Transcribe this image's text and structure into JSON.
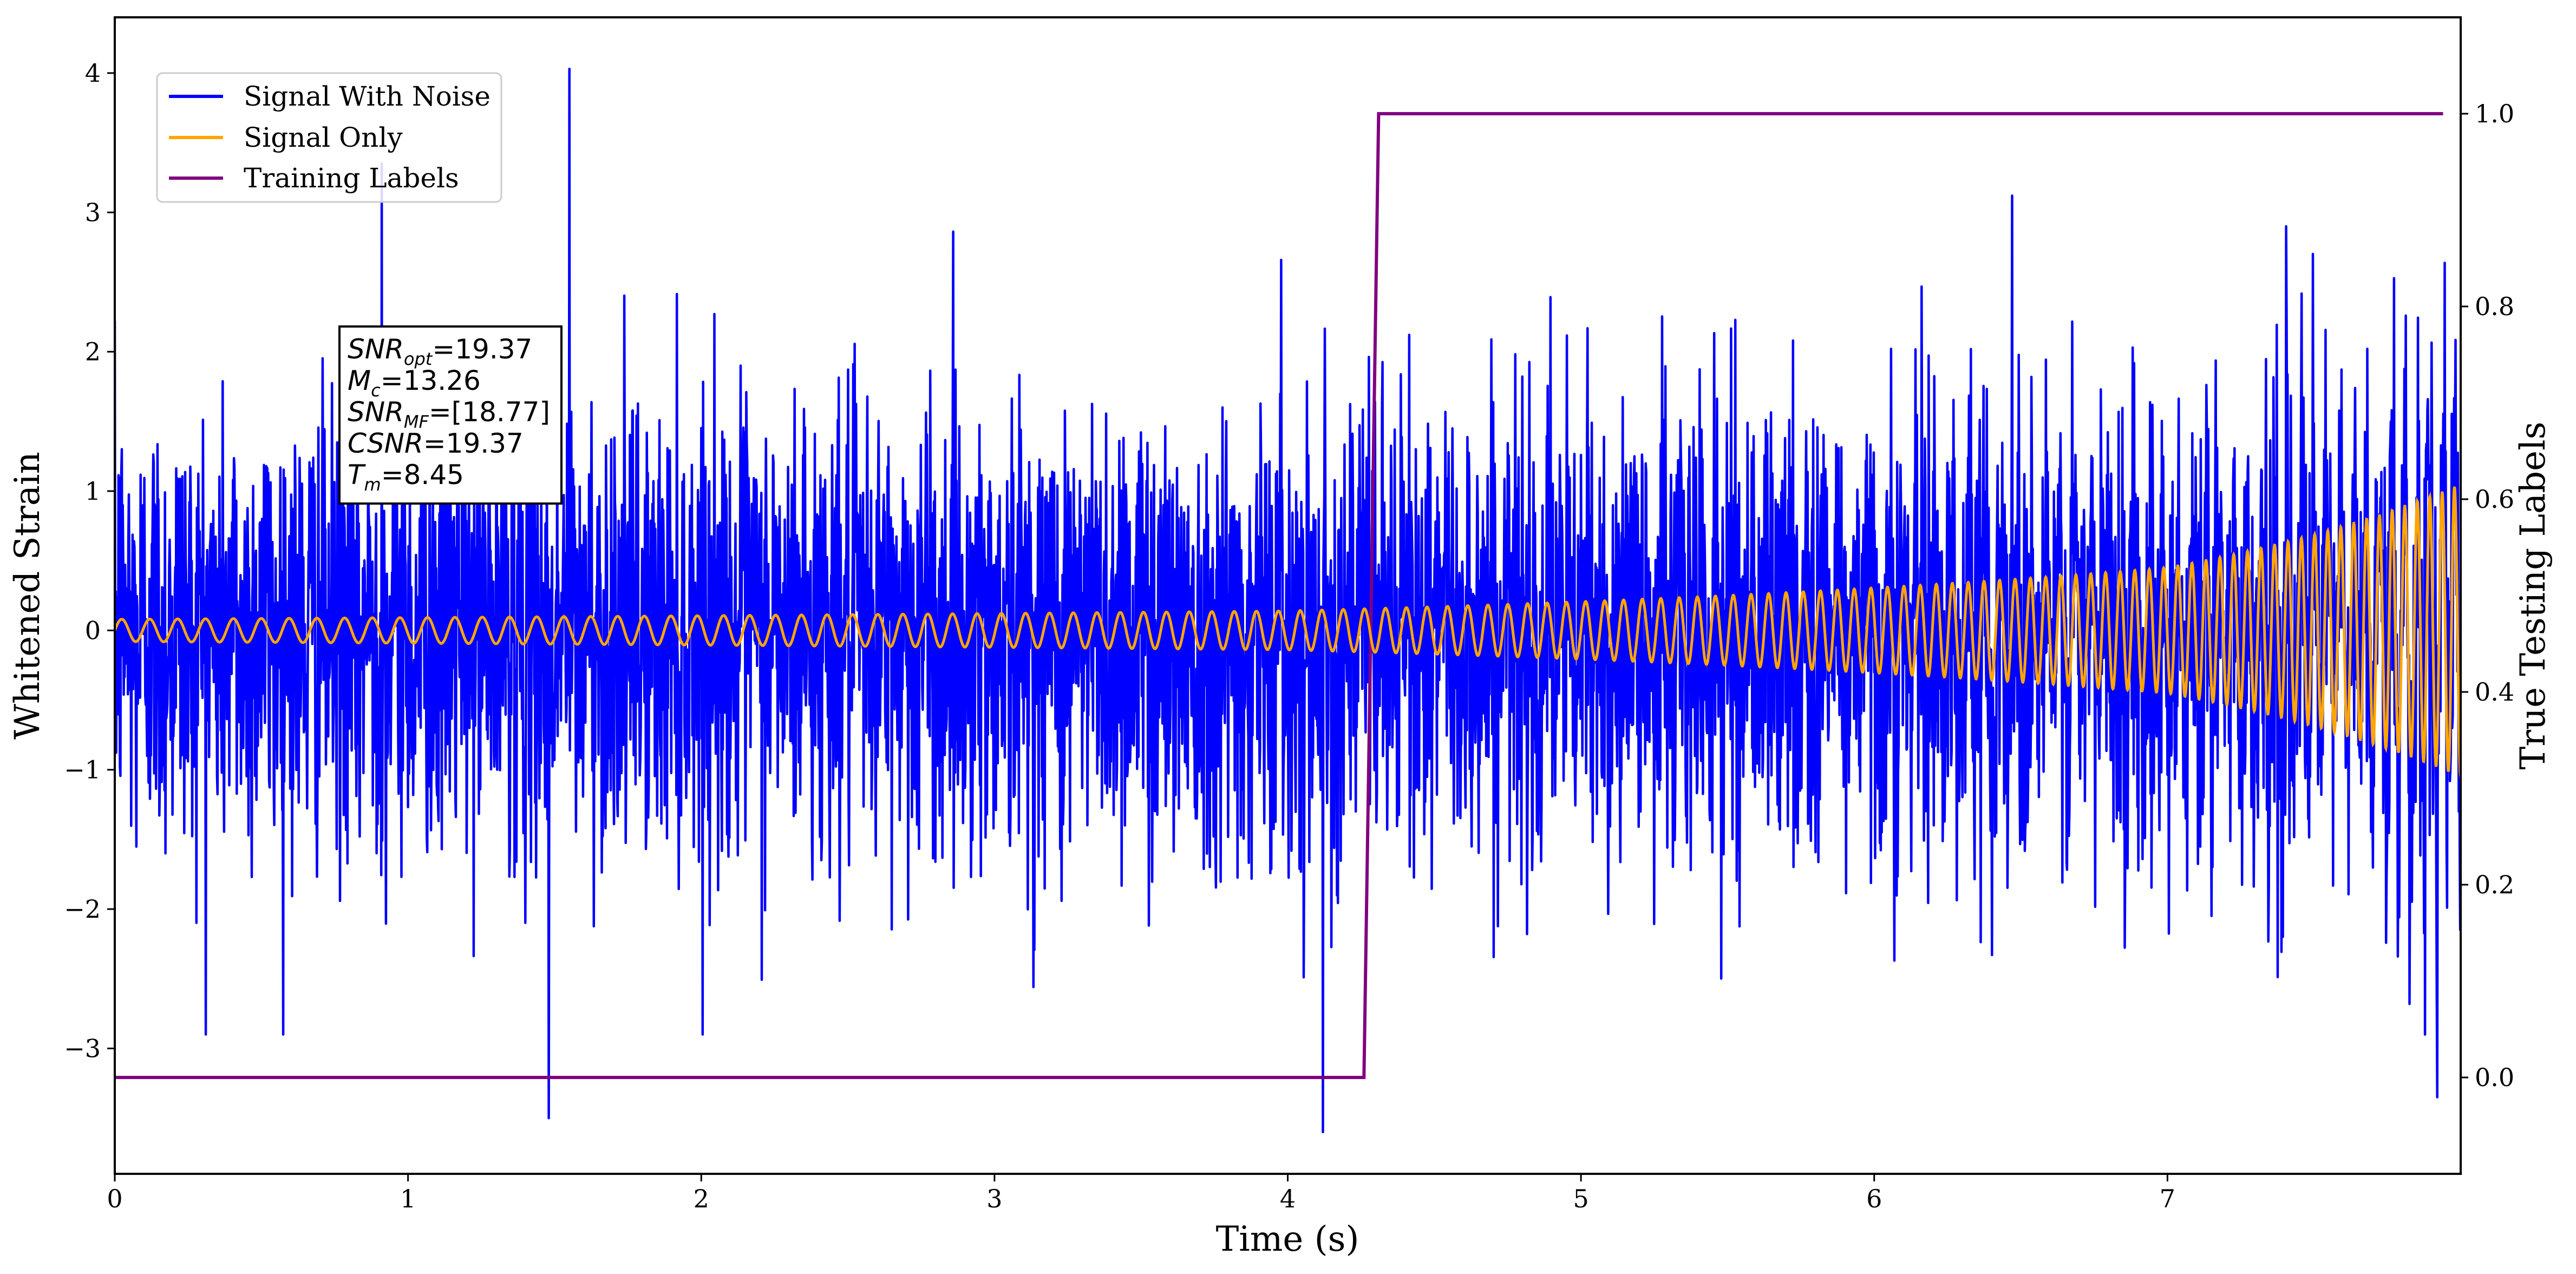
{
  "chart_data": {
    "type": "line",
    "xlabel": "Time (s)",
    "ylabel": "Whitened Strain",
    "y2label": "True Testing Labels",
    "xlim": [
      0,
      8
    ],
    "ylim": [
      -3.9,
      4.4
    ],
    "y2lim": [
      -0.1,
      1.1
    ],
    "xticks": [
      "0",
      "1",
      "2",
      "3",
      "4",
      "5",
      "6",
      "7"
    ],
    "yticks": [
      "−3",
      "−2",
      "−1",
      "0",
      "1",
      "2",
      "3",
      "4"
    ],
    "y2ticks": [
      "0.0",
      "0.2",
      "0.4",
      "0.6",
      "0.8",
      "1.0"
    ],
    "grid": false,
    "legend_position": "top-left",
    "series": [
      {
        "name": "Signal With Noise",
        "color": "#0000ff",
        "axis": "left",
        "description_values": {
          "x_range": [
            0,
            8
          ],
          "approx_std": 0.8,
          "peaks": [
            [
              1.55,
              4.03
            ],
            [
              0.91,
              3.35
            ],
            [
              1.48,
              -3.5
            ],
            [
              4.12,
              -3.6
            ],
            [
              7.92,
              -3.35
            ],
            [
              6.47,
              3.12
            ]
          ]
        }
      },
      {
        "name": "Signal Only",
        "color": "#ffa500",
        "axis": "left",
        "description_values": {
          "amplitude_at_start": 0.08,
          "amplitude_at_4s": 0.14,
          "amplitude_at_7s": 0.45,
          "amplitude_at_8s": 1.05,
          "frequency_at_start_hz": 10.5,
          "frequency_at_8s_hz": 24
        }
      },
      {
        "name": "Training Labels",
        "color": "#800080",
        "axis": "right",
        "x": [
          0,
          4.26,
          4.31,
          7.94
        ],
        "values": [
          0.0,
          0.0,
          1.0,
          1.0
        ]
      }
    ]
  },
  "annotation": {
    "lines": [
      {
        "sym": "SNR",
        "sub": "opt",
        "val": "=19.37"
      },
      {
        "sym": "M",
        "sub": "c",
        "val": "=13.26"
      },
      {
        "sym": "SNR",
        "sub": "MF",
        "val": "=[18.77]"
      },
      {
        "sym": "CSNR",
        "sub": "",
        "val": "=19.37"
      },
      {
        "sym": "T",
        "sub": "m",
        "val": "=8.45"
      }
    ]
  }
}
